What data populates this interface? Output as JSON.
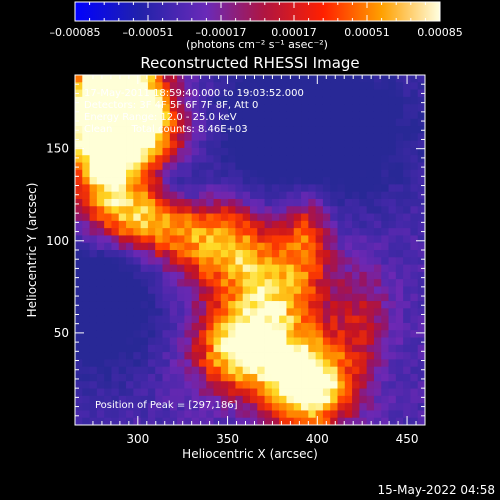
{
  "chart_data": {
    "type": "heatmap",
    "title": "Reconstructed RHESSI Image",
    "xlabel": "Heliocentric X (arcsec)",
    "ylabel": "Heliocentric Y (arcsec)",
    "xlim": [
      265,
      460
    ],
    "ylim": [
      0,
      190
    ],
    "x_ticks": [
      300,
      350,
      400,
      450
    ],
    "y_ticks": [
      50,
      100,
      150
    ],
    "colorbar": {
      "min": -0.00085,
      "max": 0.00085,
      "tick_values": [
        -0.00085,
        -0.00051,
        -0.00017,
        0.00017,
        0.00051,
        0.00085
      ],
      "tick_labels": [
        "–0.00085",
        "–0.00051",
        "–0.00017",
        "0.00017",
        "0.00051",
        "0.00085"
      ],
      "unit_label": "(photons cm⁻² s⁻¹ asec⁻²)"
    },
    "annotations": [
      "17-May-2011 18:59:40.000 to 19:03:52.000",
      "Detectors: 3F 4F 5F 6F 7F 8F, Att 0",
      "Energy Range: 12.0 - 25.0 keV",
      "Clean      Total counts: 8.46E+03"
    ],
    "peak_label": "Position of Peak = [297,186]",
    "peak": [
      297,
      186
    ],
    "intensity_sources": [
      {
        "x": 285,
        "y": 178,
        "amp": 1.0,
        "sx": 18,
        "sy": 18
      },
      {
        "x": 300,
        "y": 160,
        "amp": 0.7,
        "sx": 22,
        "sy": 20
      },
      {
        "x": 280,
        "y": 140,
        "amp": 0.55,
        "sx": 14,
        "sy": 22
      },
      {
        "x": 300,
        "y": 110,
        "amp": 0.65,
        "sx": 20,
        "sy": 14
      },
      {
        "x": 345,
        "y": 100,
        "amp": 0.6,
        "sx": 22,
        "sy": 18
      },
      {
        "x": 375,
        "y": 70,
        "amp": 0.6,
        "sx": 20,
        "sy": 20
      },
      {
        "x": 355,
        "y": 40,
        "amp": 0.7,
        "sx": 18,
        "sy": 16
      },
      {
        "x": 395,
        "y": 22,
        "amp": 0.95,
        "sx": 18,
        "sy": 18
      },
      {
        "x": 395,
        "y": 105,
        "amp": 0.45,
        "sx": 10,
        "sy": 18
      },
      {
        "x": 425,
        "y": 60,
        "amp": 0.3,
        "sx": 12,
        "sy": 20
      }
    ],
    "intensity_sinks": [
      {
        "x": 395,
        "y": 160,
        "amp": 0.55,
        "sx": 40,
        "sy": 28
      },
      {
        "x": 280,
        "y": 70,
        "amp": 0.5,
        "sx": 22,
        "sy": 30
      },
      {
        "x": 325,
        "y": 130,
        "amp": 0.3,
        "sx": 10,
        "sy": 10
      }
    ]
  },
  "footer": {
    "timestamp": "15-May-2022 04:58"
  }
}
